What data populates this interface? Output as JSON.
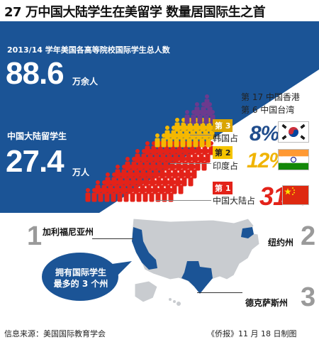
{
  "title": "27 万中国大陆学生在美留学 数量居国际生之首",
  "total": {
    "label": "2013/14 学年美国各高等院校国际学生总人数",
    "value": "88.6",
    "unit": "万余人"
  },
  "china_students": {
    "label": "中国大陆留学生",
    "value": "27.4",
    "unit": "万人"
  },
  "other_ranks": [
    "第 17 中国香港",
    "第 6 中国台湾"
  ],
  "rankings": [
    {
      "rank": "第 3",
      "name": "韩国占",
      "pct": "8%",
      "flag": "korea-flag",
      "rank_bg": "#d9a400",
      "rank_color": "#ffffff",
      "pct_color": "#1f4c8c"
    },
    {
      "rank": "第 2",
      "name": "印度占",
      "pct": "12%",
      "flag": "india-flag",
      "rank_bg": "#f5c400",
      "rank_color": "#222222",
      "pct_color": "#f0b400"
    },
    {
      "rank": "第 1",
      "name": "中国大陆占",
      "pct": "31%",
      "flag": "china-flag",
      "rank_bg": "#e32219",
      "rank_color": "#ffffff",
      "pct_color": "#e32219"
    }
  ],
  "states": [
    {
      "num": "1",
      "name": "加利福尼亚州"
    },
    {
      "num": "2",
      "name": "纽约州"
    },
    {
      "num": "3",
      "name": "德克萨斯州"
    }
  ],
  "callout": [
    "拥有国际学生",
    "最多的 3 个州"
  ],
  "footer": {
    "source": "信息来源：美国国际教育学会",
    "credit": "《侨报》11 月 18 日制图"
  },
  "colors": {
    "navy": "#1b5496",
    "red": "#e32219",
    "yellow": "#f5b800",
    "purple": "#6c3a8e",
    "map": "#c9ccd0",
    "highlight": "#1b5496"
  }
}
